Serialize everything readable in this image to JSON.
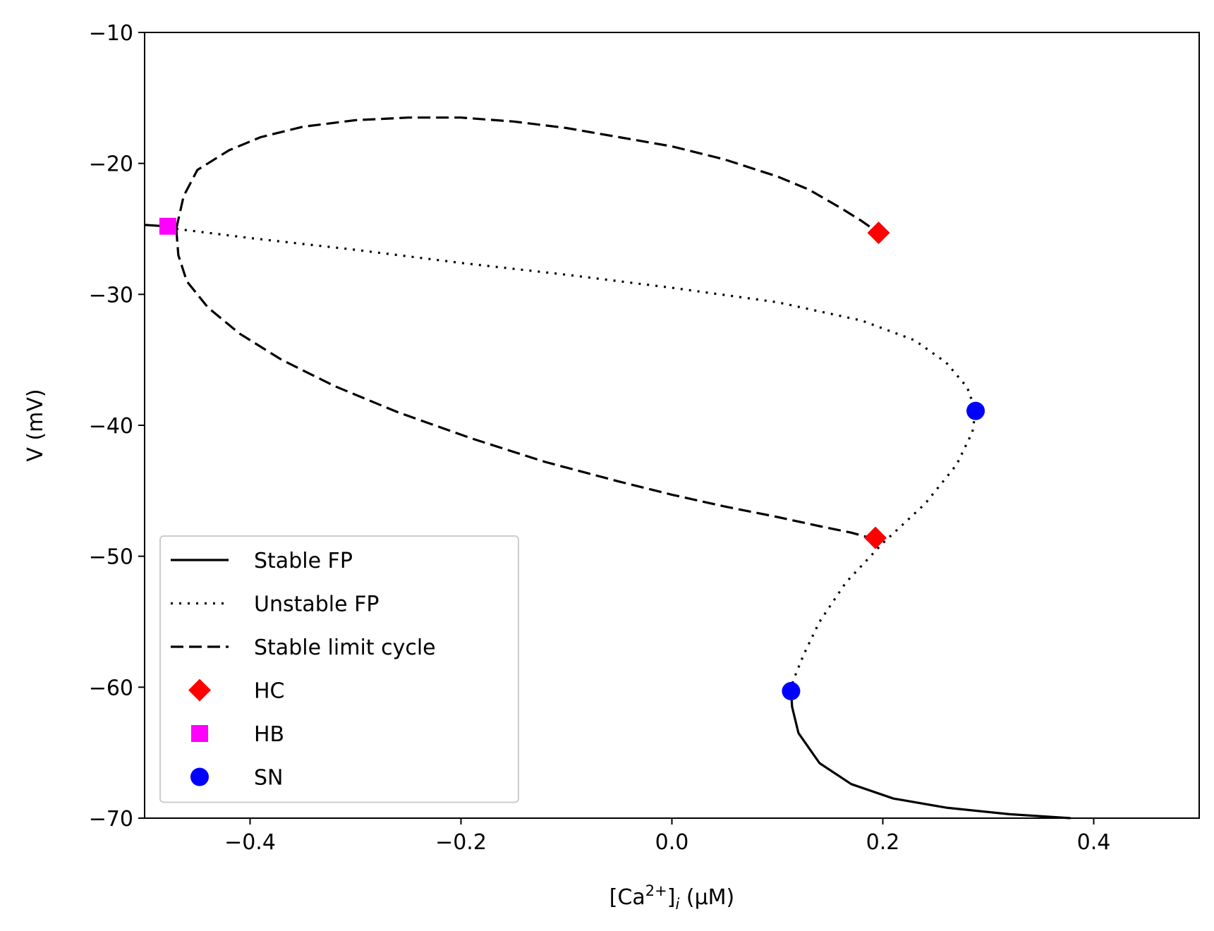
{
  "chart_data": {
    "type": "line",
    "title": "",
    "xlabel": "[Ca²⁺]ᵢ (μM)",
    "xlabel_parts": {
      "pre": "[Ca",
      "sup": "2+",
      "mid": "]",
      "sub": "i",
      "post": " (μM)"
    },
    "ylabel": "V (mV)",
    "xlim": [
      -0.5,
      0.5
    ],
    "ylim": [
      -70,
      -10
    ],
    "xticks": [
      -0.4,
      -0.2,
      0.0,
      0.2,
      0.4
    ],
    "xtick_labels": [
      "−0.4",
      "−0.2",
      "0.0",
      "0.2",
      "0.4"
    ],
    "yticks": [
      -70,
      -60,
      -50,
      -40,
      -30,
      -20,
      -10
    ],
    "ytick_labels": [
      "−70",
      "−60",
      "−50",
      "−40",
      "−30",
      "−20",
      "−10"
    ],
    "grid": false,
    "legend_position": "lower-left",
    "series": [
      {
        "name": "Stable FP",
        "style": "solid",
        "color": "#000000",
        "segments": [
          [
            [
              -0.5,
              -24.7
            ],
            [
              -0.48,
              -24.8
            ],
            [
              -0.47,
              -25.0
            ]
          ],
          [
            [
              0.113,
              -60.2
            ],
            [
              0.114,
              -61.5
            ],
            [
              0.12,
              -63.5
            ],
            [
              0.14,
              -65.8
            ],
            [
              0.17,
              -67.4
            ],
            [
              0.21,
              -68.5
            ],
            [
              0.26,
              -69.2
            ],
            [
              0.32,
              -69.7
            ],
            [
              0.378,
              -70.0
            ]
          ]
        ]
      },
      {
        "name": "Unstable FP",
        "style": "dotted",
        "color": "#000000",
        "segments": [
          [
            [
              -0.47,
              -25.0
            ],
            [
              -0.4,
              -25.7
            ],
            [
              -0.3,
              -26.6
            ],
            [
              -0.2,
              -27.6
            ],
            [
              -0.1,
              -28.5
            ],
            [
              0.0,
              -29.5
            ],
            [
              0.1,
              -30.6
            ],
            [
              0.18,
              -32.0
            ],
            [
              0.23,
              -33.5
            ],
            [
              0.26,
              -35.2
            ],
            [
              0.28,
              -37.1
            ],
            [
              0.288,
              -38.9
            ],
            [
              0.285,
              -40.5
            ],
            [
              0.27,
              -43.0
            ],
            [
              0.24,
              -46.0
            ],
            [
              0.2,
              -49.0
            ],
            [
              0.165,
              -52.0
            ],
            [
              0.14,
              -55.0
            ],
            [
              0.125,
              -57.5
            ],
            [
              0.115,
              -59.5
            ],
            [
              0.113,
              -60.2
            ]
          ]
        ]
      },
      {
        "name": "Stable limit cycle",
        "style": "dashed",
        "color": "#000000",
        "segments": [
          [
            [
              -0.47,
              -25.0
            ],
            [
              -0.463,
              -22.5
            ],
            [
              -0.45,
              -20.5
            ],
            [
              -0.42,
              -19.0
            ],
            [
              -0.39,
              -18.0
            ],
            [
              -0.35,
              -17.2
            ],
            [
              -0.3,
              -16.7
            ],
            [
              -0.25,
              -16.5
            ],
            [
              -0.2,
              -16.5
            ],
            [
              -0.15,
              -16.8
            ],
            [
              -0.1,
              -17.3
            ],
            [
              -0.05,
              -18.0
            ],
            [
              0.0,
              -18.7
            ],
            [
              0.05,
              -19.7
            ],
            [
              0.1,
              -21.0
            ],
            [
              0.13,
              -22.0
            ],
            [
              0.16,
              -23.4
            ],
            [
              0.18,
              -24.4
            ],
            [
              0.196,
              -25.3
            ]
          ],
          [
            [
              -0.47,
              -25.0
            ],
            [
              -0.468,
              -27.0
            ],
            [
              -0.46,
              -29.0
            ],
            [
              -0.44,
              -31.0
            ],
            [
              -0.41,
              -33.0
            ],
            [
              -0.37,
              -35.0
            ],
            [
              -0.32,
              -37.0
            ],
            [
              -0.26,
              -39.0
            ],
            [
              -0.19,
              -41.0
            ],
            [
              -0.12,
              -42.8
            ],
            [
              -0.05,
              -44.3
            ],
            [
              0.0,
              -45.3
            ],
            [
              0.05,
              -46.2
            ],
            [
              0.1,
              -47.0
            ],
            [
              0.14,
              -47.7
            ],
            [
              0.17,
              -48.2
            ],
            [
              0.193,
              -48.7
            ]
          ]
        ]
      }
    ],
    "markers": [
      {
        "name": "HC",
        "shape": "diamond",
        "color": "#ff0000",
        "points": [
          [
            0.196,
            -25.3
          ],
          [
            0.193,
            -48.6
          ]
        ]
      },
      {
        "name": "HB",
        "shape": "square",
        "color": "#ff00ff",
        "points": [
          [
            -0.478,
            -24.8
          ]
        ]
      },
      {
        "name": "SN",
        "shape": "circle",
        "color": "#0000ff",
        "points": [
          [
            0.288,
            -38.9
          ],
          [
            0.113,
            -60.3
          ]
        ]
      }
    ]
  }
}
